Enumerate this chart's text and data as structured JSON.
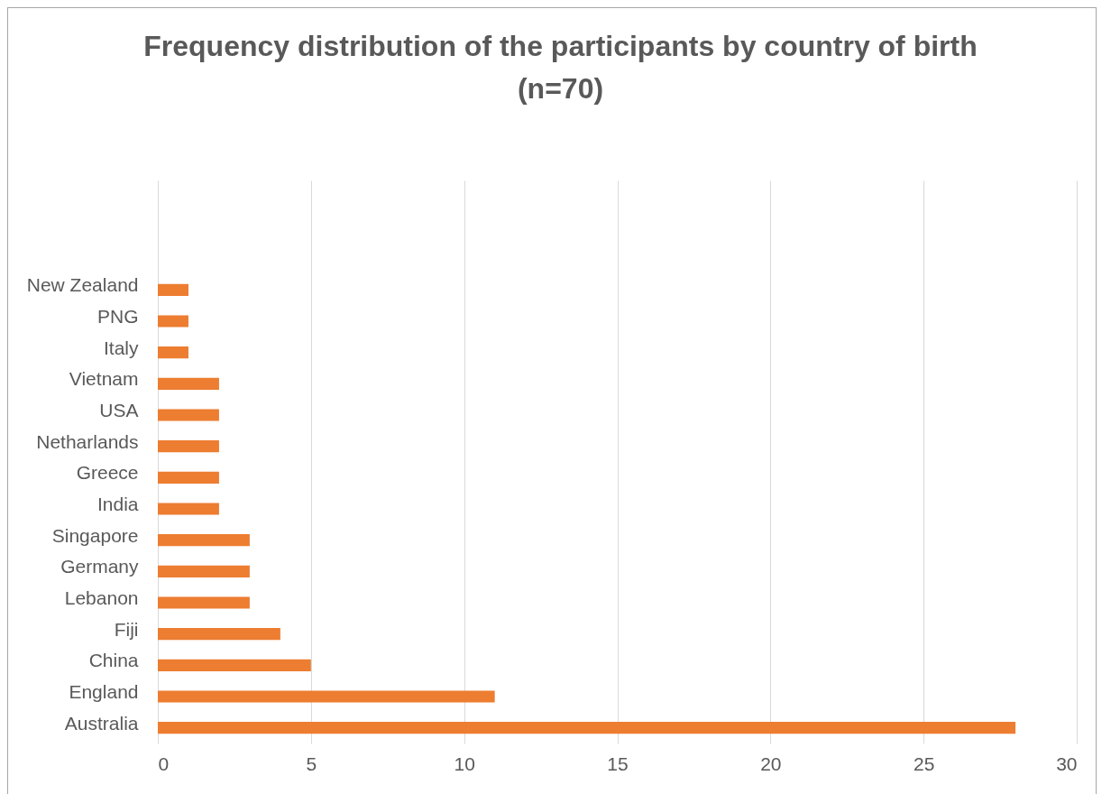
{
  "chart_data": {
    "type": "bar",
    "orientation": "horizontal",
    "title": "Frequency distribution of the participants by country of birth\n(n=70)",
    "categories": [
      "New Zealand",
      "PNG",
      "Italy",
      "Vietnam",
      "USA",
      "Netharlands",
      "Greece",
      "India",
      "Singapore",
      "Germany",
      "Lebanon",
      "Fiji",
      "China",
      "England",
      "Australia"
    ],
    "values": [
      1,
      1,
      1,
      2,
      2,
      2,
      2,
      2,
      3,
      3,
      3,
      4,
      5,
      11,
      28
    ],
    "color": "#ed7d31",
    "xlim": [
      0,
      30
    ],
    "xticks": [
      0,
      5,
      10,
      15,
      20,
      25,
      30
    ],
    "grid": "x"
  }
}
